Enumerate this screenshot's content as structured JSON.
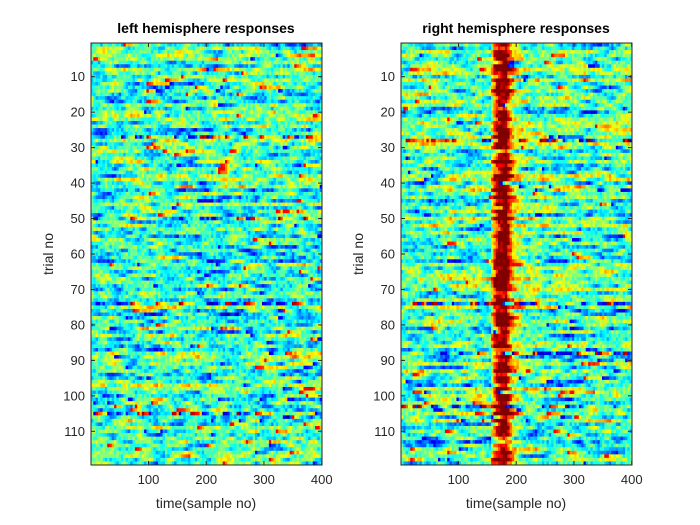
{
  "figure": {
    "background": "#ffffff"
  },
  "chart_data": [
    {
      "type": "heatmap",
      "title": "left hemisphere responses",
      "xlabel": "time(sample no)",
      "ylabel": "trial no",
      "xlim": [
        0.5,
        400.5
      ],
      "ylim": [
        0.5,
        119.5
      ],
      "y_direction": "reversed",
      "xticks": [
        100,
        200,
        300,
        400
      ],
      "yticks": [
        10,
        20,
        30,
        40,
        50,
        60,
        70,
        80,
        90,
        100,
        110
      ],
      "colormap": "jet",
      "dominant_colors": [
        "#20d8c8",
        "#f0f020",
        "#00b8e8"
      ],
      "grid": false,
      "features": {
        "description_hint": "noisy single-trial responses, no consistent evoked band",
        "hot_rows": [
          27,
          50,
          74,
          105
        ],
        "evoked_band_x": null
      }
    },
    {
      "type": "heatmap",
      "title": "right hemisphere responses",
      "xlabel": "time(sample no)",
      "ylabel": "trial no",
      "xlim": [
        0.5,
        400.5
      ],
      "ylim": [
        0.5,
        119.5
      ],
      "y_direction": "reversed",
      "xticks": [
        100,
        200,
        300,
        400
      ],
      "yticks": [
        10,
        20,
        30,
        40,
        50,
        60,
        70,
        80,
        90,
        100,
        110
      ],
      "colormap": "jet",
      "dominant_colors": [
        "#20d8c8",
        "#f0f020",
        "#00b8e8"
      ],
      "grid": false,
      "features": {
        "description_hint": "consistent vertical response band around sample 160-180",
        "hot_rows": [
          28,
          74,
          88,
          103
        ],
        "evoked_band_x": [
          155,
          185
        ]
      }
    }
  ]
}
